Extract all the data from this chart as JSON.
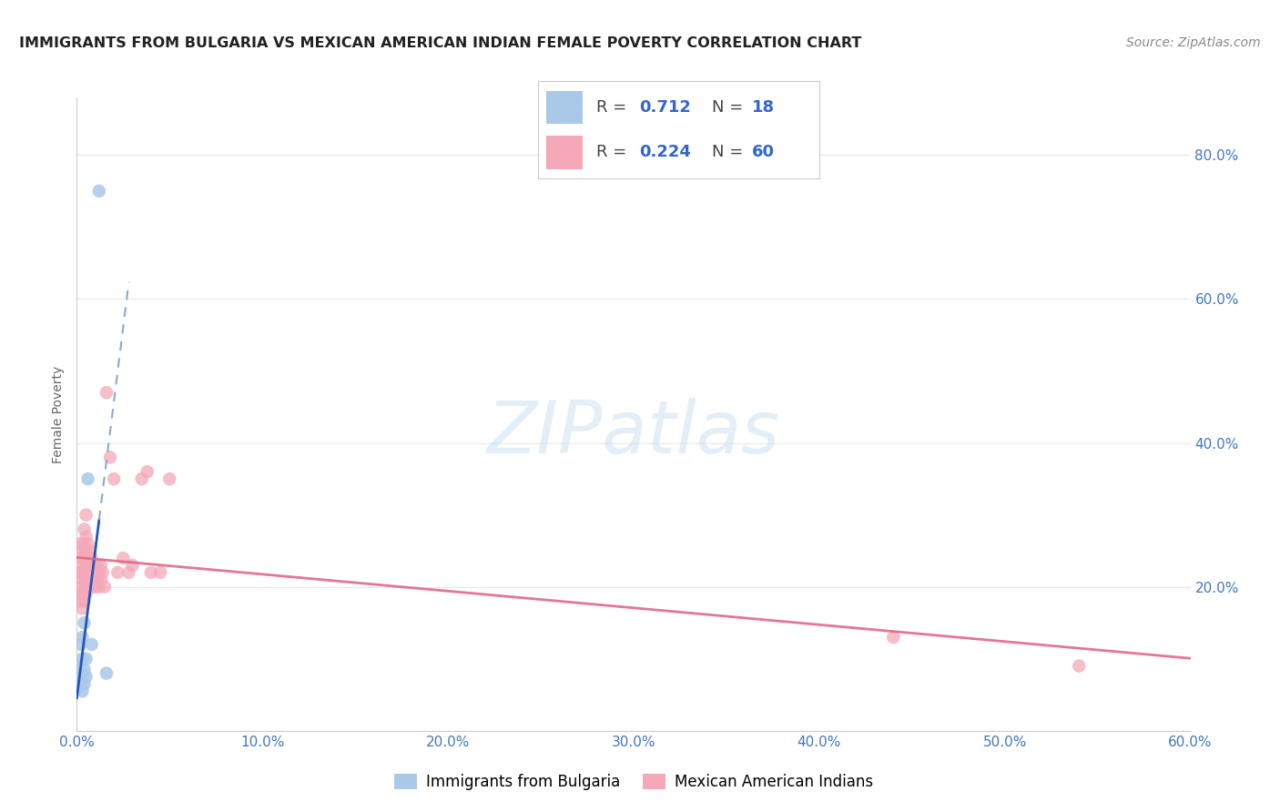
{
  "title": "IMMIGRANTS FROM BULGARIA VS MEXICAN AMERICAN INDIAN FEMALE POVERTY CORRELATION CHART",
  "source": "Source: ZipAtlas.com",
  "ylabel": "Female Poverty",
  "xlim": [
    0,
    0.6
  ],
  "ylim": [
    0,
    0.88
  ],
  "watermark_text": "ZIPatlas",
  "bg_color": "#ffffff",
  "grid_color": "#e8e8e8",
  "blue_scatter_color": "#aac8e8",
  "pink_scatter_color": "#f4a8b8",
  "blue_line_color": "#2255bb",
  "blue_dash_color": "#88aacc",
  "pink_line_color": "#e06888",
  "legend_blue_color": "#aac8e8",
  "legend_pink_color": "#f4a8b8",
  "legend_text_color": "#3366cc",
  "title_color": "#222222",
  "axis_tick_color": "#4477bb",
  "ylabel_color": "#666666",
  "source_color": "#888888",
  "bulgaria_points_x": [
    0.001,
    0.001,
    0.002,
    0.002,
    0.002,
    0.003,
    0.003,
    0.003,
    0.003,
    0.004,
    0.004,
    0.004,
    0.005,
    0.005,
    0.006,
    0.008,
    0.012,
    0.016
  ],
  "bulgaria_points_y": [
    0.06,
    0.09,
    0.065,
    0.075,
    0.12,
    0.055,
    0.08,
    0.1,
    0.13,
    0.065,
    0.085,
    0.15,
    0.075,
    0.1,
    0.35,
    0.12,
    0.75,
    0.08
  ],
  "mexican_points_x": [
    0.001,
    0.001,
    0.002,
    0.002,
    0.002,
    0.002,
    0.002,
    0.003,
    0.003,
    0.003,
    0.003,
    0.003,
    0.004,
    0.004,
    0.004,
    0.004,
    0.004,
    0.004,
    0.005,
    0.005,
    0.005,
    0.005,
    0.005,
    0.005,
    0.006,
    0.006,
    0.006,
    0.006,
    0.007,
    0.007,
    0.007,
    0.008,
    0.008,
    0.008,
    0.009,
    0.009,
    0.01,
    0.01,
    0.011,
    0.011,
    0.012,
    0.012,
    0.013,
    0.013,
    0.014,
    0.015,
    0.016,
    0.018,
    0.02,
    0.022,
    0.025,
    0.028,
    0.03,
    0.035,
    0.038,
    0.04,
    0.045,
    0.05,
    0.44,
    0.54
  ],
  "mexican_points_y": [
    0.19,
    0.22,
    0.18,
    0.2,
    0.22,
    0.24,
    0.26,
    0.17,
    0.19,
    0.21,
    0.23,
    0.25,
    0.18,
    0.2,
    0.22,
    0.24,
    0.26,
    0.28,
    0.19,
    0.21,
    0.23,
    0.25,
    0.27,
    0.3,
    0.2,
    0.22,
    0.24,
    0.26,
    0.21,
    0.23,
    0.25,
    0.2,
    0.22,
    0.24,
    0.21,
    0.23,
    0.2,
    0.22,
    0.21,
    0.23,
    0.2,
    0.22,
    0.21,
    0.23,
    0.22,
    0.2,
    0.47,
    0.38,
    0.35,
    0.22,
    0.24,
    0.22,
    0.23,
    0.35,
    0.36,
    0.22,
    0.22,
    0.35,
    0.13,
    0.09
  ]
}
